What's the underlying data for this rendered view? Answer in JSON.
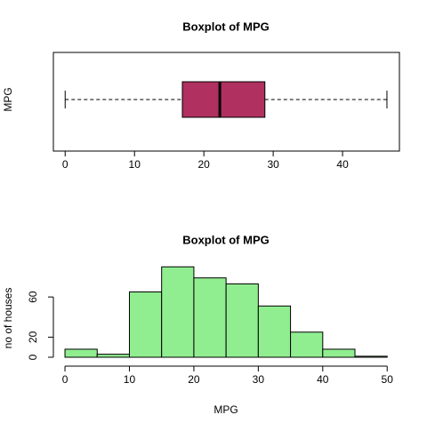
{
  "chart_data": [
    {
      "type": "boxplot",
      "title": "Boxplot of MPG",
      "ylabel": "MPG",
      "whisker_low": 0,
      "q1": 16.9,
      "median": 22.3,
      "q3": 28.8,
      "whisker_high": 46.4,
      "color": "#b03060",
      "xlim": [
        -1.7,
        48.2
      ],
      "xticks": [
        0,
        10,
        20,
        30,
        40
      ]
    },
    {
      "type": "histogram",
      "title": "Boxplot of MPG",
      "xlabel": "MPG",
      "ylabel": "no of houses",
      "bins": [
        0,
        5,
        10,
        15,
        20,
        25,
        30,
        35,
        40,
        45,
        50
      ],
      "values": [
        8,
        3,
        65,
        90,
        79,
        73,
        51,
        25,
        8,
        1
      ],
      "color": "#90ee90",
      "xlim": [
        -1.8,
        51.9
      ],
      "ylim": [
        0,
        92
      ],
      "xticks": [
        0,
        10,
        20,
        30,
        40,
        50
      ],
      "yticks": [
        0,
        20,
        60
      ]
    }
  ]
}
